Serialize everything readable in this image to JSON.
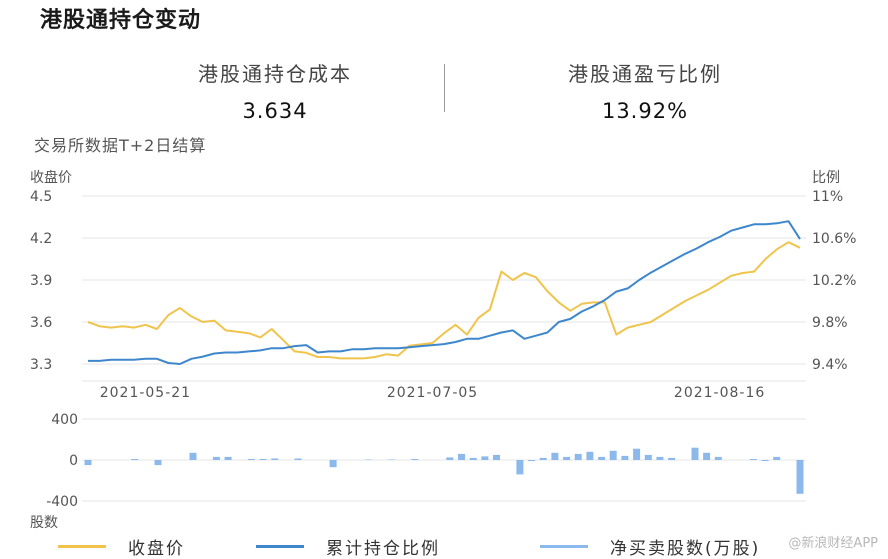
{
  "title": "港股通持仓变动",
  "stats": [
    {
      "label": "港股通持仓成本",
      "value": "3.634"
    },
    {
      "label": "港股通盈亏比例",
      "value": "13.92%"
    }
  ],
  "note": "交易所数据T+2日结算",
  "watermark": "@新浪财经APP",
  "colors": {
    "price": "#F0C44C",
    "ratio": "#3E87CC",
    "net": "#8CB9EC"
  },
  "chart_data": [
    {
      "type": "line",
      "ylabel_left": "收盘价",
      "ylabel_right": "比例",
      "ylim_left": [
        3.3,
        4.5
      ],
      "yticks_left": [
        "4.5",
        "4.2",
        "3.9",
        "3.6",
        "3.3"
      ],
      "ylim_right": [
        9.4,
        11.0
      ],
      "yticks_right": [
        "11%",
        "10.6%",
        "10.2%",
        "9.8%",
        "9.4%"
      ],
      "xticks": [
        {
          "index": 5,
          "label": "2021-05-21"
        },
        {
          "index": 30,
          "label": "2021-07-05"
        },
        {
          "index": 55,
          "label": "2021-08-16"
        }
      ],
      "grid": true,
      "series": [
        {
          "name": "收盘价",
          "axis": "left",
          "values": [
            3.6,
            3.57,
            3.56,
            3.57,
            3.56,
            3.58,
            3.55,
            3.65,
            3.7,
            3.64,
            3.6,
            3.61,
            3.54,
            3.53,
            3.52,
            3.49,
            3.55,
            3.47,
            3.39,
            3.38,
            3.35,
            3.35,
            3.34,
            3.34,
            3.34,
            3.35,
            3.37,
            3.36,
            3.43,
            3.44,
            3.45,
            3.52,
            3.58,
            3.51,
            3.63,
            3.69,
            3.96,
            3.9,
            3.95,
            3.92,
            3.82,
            3.74,
            3.68,
            3.73,
            3.74,
            3.74,
            3.51,
            3.56,
            3.58,
            3.6,
            3.65,
            3.7,
            3.75,
            3.79,
            3.83,
            3.88,
            3.93,
            3.95,
            3.96,
            4.05,
            4.12,
            4.17,
            4.13
          ]
        },
        {
          "name": "累计持仓比例",
          "axis": "right",
          "values": [
            9.43,
            9.43,
            9.44,
            9.44,
            9.44,
            9.45,
            9.45,
            9.41,
            9.4,
            9.45,
            9.47,
            9.5,
            9.51,
            9.51,
            9.52,
            9.53,
            9.55,
            9.55,
            9.57,
            9.58,
            9.51,
            9.52,
            9.52,
            9.54,
            9.54,
            9.55,
            9.55,
            9.55,
            9.56,
            9.57,
            9.58,
            9.59,
            9.61,
            9.64,
            9.64,
            9.67,
            9.7,
            9.72,
            9.64,
            9.67,
            9.7,
            9.8,
            9.83,
            9.9,
            9.95,
            10.01,
            10.09,
            10.12,
            10.2,
            10.27,
            10.33,
            10.39,
            10.45,
            10.5,
            10.56,
            10.61,
            10.67,
            10.7,
            10.73,
            10.73,
            10.74,
            10.76,
            10.59
          ]
        }
      ]
    },
    {
      "type": "bar",
      "ylabel": "股数",
      "ylim": [
        -400,
        400
      ],
      "yticks": [
        "400",
        "0",
        "-400"
      ],
      "series": [
        {
          "name": "净买卖股数(万股)",
          "values": [
            -50,
            0,
            0,
            0,
            10,
            0,
            -50,
            0,
            0,
            70,
            0,
            30,
            30,
            0,
            10,
            10,
            15,
            0,
            15,
            0,
            0,
            -70,
            0,
            0,
            5,
            0,
            5,
            0,
            10,
            0,
            0,
            25,
            60,
            20,
            35,
            50,
            0,
            -140,
            -10,
            20,
            70,
            30,
            60,
            80,
            30,
            90,
            40,
            110,
            50,
            30,
            20,
            0,
            120,
            70,
            30,
            0,
            0,
            10,
            -10,
            30,
            0,
            -330
          ]
        }
      ]
    }
  ]
}
